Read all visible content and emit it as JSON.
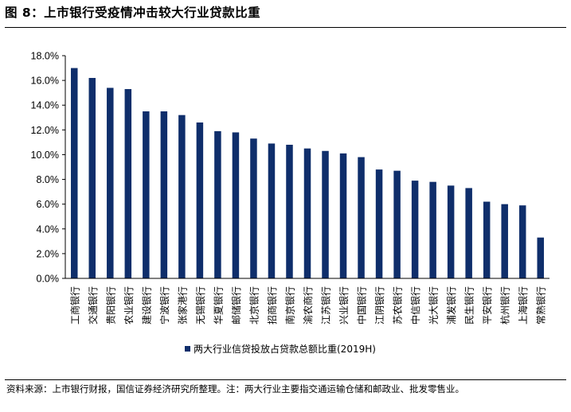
{
  "figure": {
    "title": "图 8：上市银行受疫情冲击较大行业贷款比重",
    "source": "资料来源：上市银行财报，国信证券经济研究所整理。注：两大行业主要指交通运输仓储和邮政业、批发零售业。"
  },
  "chart_data": {
    "type": "bar",
    "title": "图 8：上市银行受疫情冲击较大行业贷款比重",
    "categories": [
      "工商银行",
      "交通银行",
      "贵阳银行",
      "农业银行",
      "建设银行",
      "宁波银行",
      "张家港行",
      "无锡银行",
      "华夏银行",
      "邮储银行",
      "北京银行",
      "招商银行",
      "南京银行",
      "渝农商行",
      "江苏银行",
      "兴业银行",
      "中国银行",
      "江阴银行",
      "苏农银行",
      "中信银行",
      "光大银行",
      "浦发银行",
      "民生银行",
      "平安银行",
      "杭州银行",
      "上海银行",
      "常熟银行"
    ],
    "series": [
      {
        "name": "两大行业信贷投放占贷款总额比重(2019H)",
        "values": [
          17.0,
          16.2,
          15.4,
          15.3,
          13.5,
          13.5,
          13.2,
          12.6,
          11.9,
          11.8,
          11.3,
          10.9,
          10.8,
          10.5,
          10.3,
          10.1,
          9.8,
          8.8,
          8.7,
          7.9,
          7.8,
          7.5,
          7.3,
          6.2,
          6.0,
          5.9,
          3.3
        ]
      }
    ],
    "yticks": [
      "0.0%",
      "2.0%",
      "4.0%",
      "6.0%",
      "8.0%",
      "10.0%",
      "12.0%",
      "14.0%",
      "16.0%",
      "18.0%"
    ],
    "ylim": [
      0,
      18
    ],
    "ylabel": "",
    "xlabel": "",
    "grid": false,
    "legend": "bottom",
    "bar_color": "#0f2e6b"
  }
}
